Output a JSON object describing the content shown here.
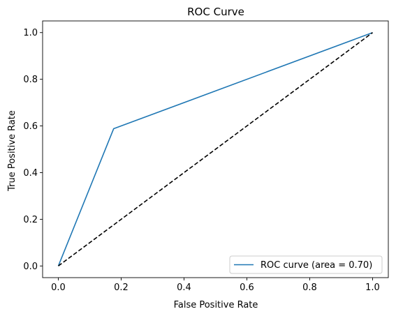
{
  "chart_data": {
    "type": "line",
    "title": "ROC Curve",
    "xlabel": "False Positive Rate",
    "ylabel": "True Positive Rate",
    "xlim": [
      -0.05,
      1.05
    ],
    "ylim": [
      -0.05,
      1.05
    ],
    "xticks": [
      0.0,
      0.2,
      0.4,
      0.6,
      0.8,
      1.0
    ],
    "xtick_labels": [
      "0.0",
      "0.2",
      "0.4",
      "0.6",
      "0.8",
      "1.0"
    ],
    "yticks": [
      0.0,
      0.2,
      0.4,
      0.6,
      0.8,
      1.0
    ],
    "ytick_labels": [
      "0.0",
      "0.2",
      "0.4",
      "0.6",
      "0.8",
      "1.0"
    ],
    "grid": false,
    "legend_position": "lower right",
    "series": [
      {
        "name": "ROC curve (area = 0.70)",
        "x": [
          0.0,
          0.176,
          1.0
        ],
        "y": [
          0.0,
          0.588,
          1.0
        ],
        "color": "#1f77b4",
        "style": "solid"
      },
      {
        "x": [
          0.0,
          1.0
        ],
        "y": [
          0.0,
          1.0
        ],
        "color": "#000000",
        "style": "dashed"
      }
    ]
  }
}
